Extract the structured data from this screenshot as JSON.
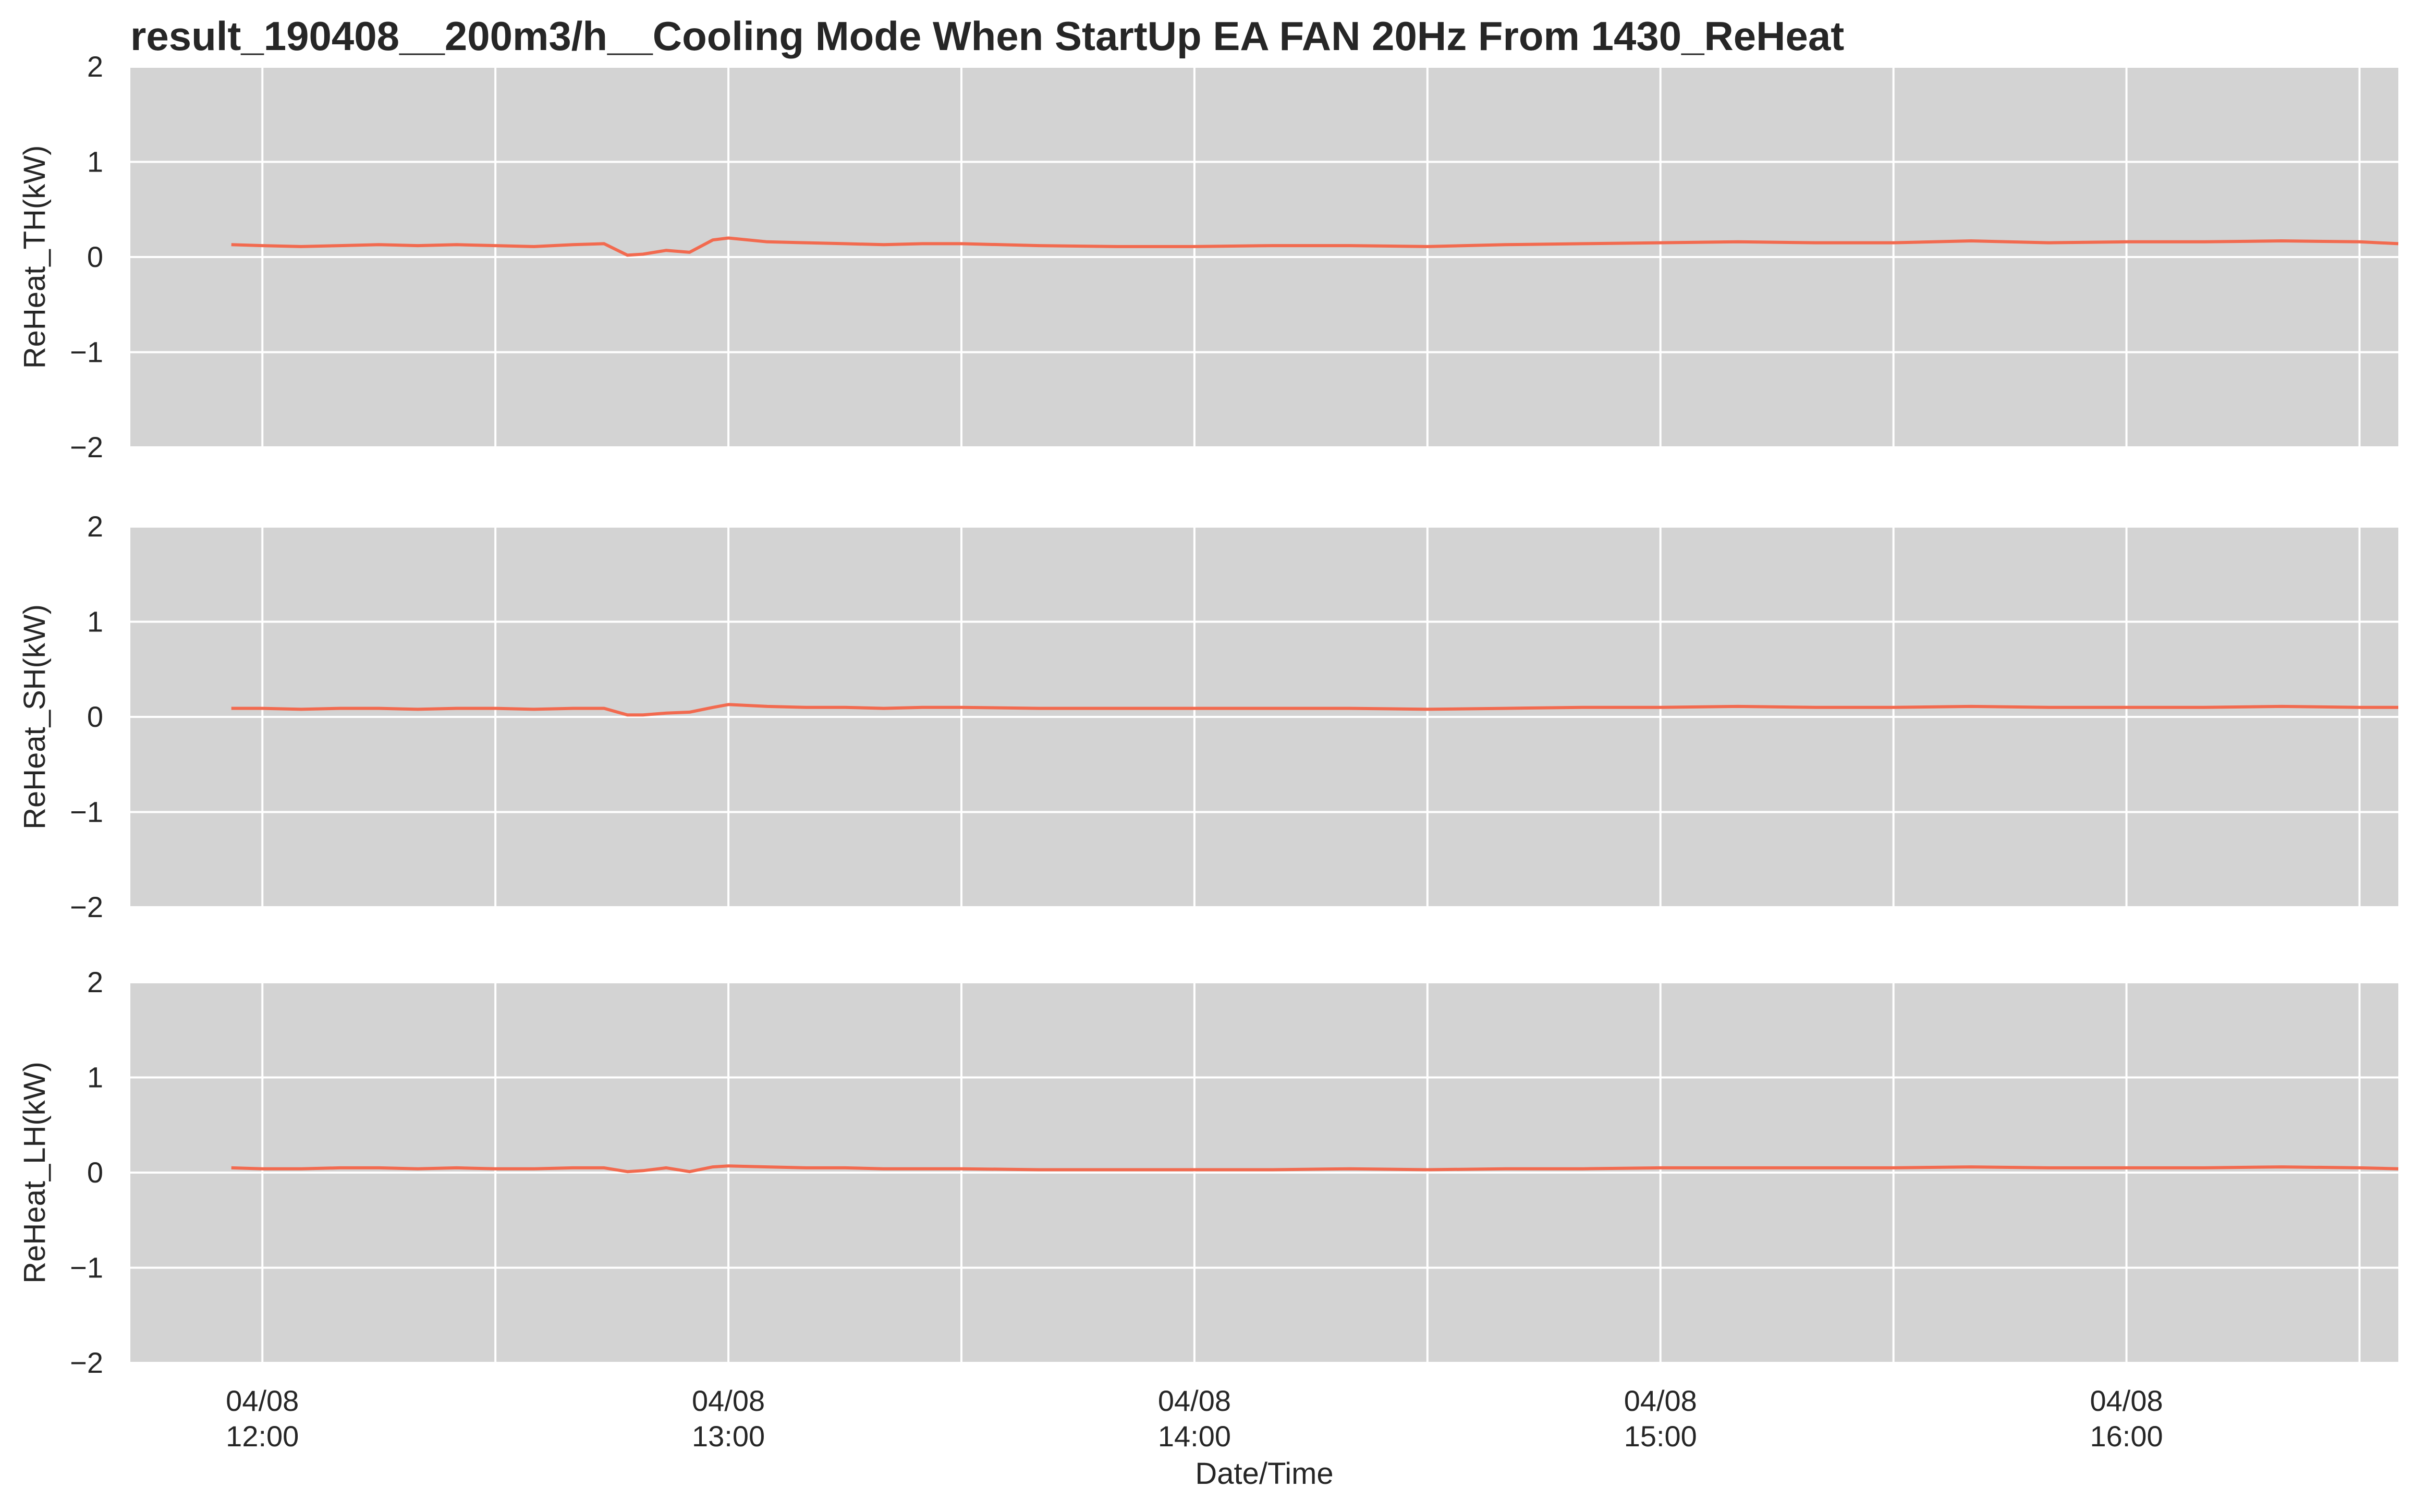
{
  "chart_data": {
    "type": "line",
    "title": "result_190408__200m3/h__Cooling Mode When StartUp EA FAN 20Hz From 1430_ReHeat",
    "xlabel": "Date/Time",
    "x_range": [
      "2019-04-08 11:43",
      "2019-04-08 16:35"
    ],
    "x_gridlines": [
      "12:00",
      "12:30",
      "13:00",
      "13:30",
      "14:00",
      "14:30",
      "15:00",
      "15:30",
      "16:00",
      "16:30"
    ],
    "x_tick_labels": [
      {
        "time": "12:00",
        "line1": "04/08",
        "line2": "12:00"
      },
      {
        "time": "13:00",
        "line1": "04/08",
        "line2": "13:00"
      },
      {
        "time": "14:00",
        "line1": "04/08",
        "line2": "14:00"
      },
      {
        "time": "15:00",
        "line1": "04/08",
        "line2": "15:00"
      },
      {
        "time": "16:00",
        "line1": "04/08",
        "line2": "16:00"
      }
    ],
    "ylim": [
      -2,
      2
    ],
    "y_ticks": [
      2,
      1,
      0,
      -1,
      -2
    ],
    "y_tick_labels": [
      "2",
      "1",
      "0",
      "−1",
      "−2"
    ],
    "grid": true,
    "line_color": "#f26a4f",
    "panel_background": "#d3d3d3",
    "grid_color": "#ffffff",
    "panels": [
      {
        "ylabel": "ReHeat_TH(kW)",
        "x": [
          "11:56",
          "12:00",
          "12:05",
          "12:10",
          "12:15",
          "12:20",
          "12:25",
          "12:30",
          "12:35",
          "12:40",
          "12:44",
          "12:47",
          "12:49",
          "12:52",
          "12:55",
          "12:58",
          "13:00",
          "13:05",
          "13:10",
          "13:15",
          "13:20",
          "13:25",
          "13:30",
          "13:40",
          "13:50",
          "14:00",
          "14:10",
          "14:20",
          "14:30",
          "14:40",
          "14:50",
          "15:00",
          "15:10",
          "15:20",
          "15:30",
          "15:40",
          "15:50",
          "16:00",
          "16:10",
          "16:20",
          "16:30",
          "16:35"
        ],
        "values": [
          0.13,
          0.12,
          0.11,
          0.12,
          0.13,
          0.12,
          0.13,
          0.12,
          0.11,
          0.13,
          0.14,
          0.02,
          0.03,
          0.07,
          0.05,
          0.18,
          0.2,
          0.16,
          0.15,
          0.14,
          0.13,
          0.14,
          0.14,
          0.12,
          0.11,
          0.11,
          0.12,
          0.12,
          0.11,
          0.13,
          0.14,
          0.15,
          0.16,
          0.15,
          0.15,
          0.17,
          0.15,
          0.16,
          0.16,
          0.17,
          0.16,
          0.14
        ]
      },
      {
        "ylabel": "ReHeat_SH(kW)",
        "x": [
          "11:56",
          "12:00",
          "12:05",
          "12:10",
          "12:15",
          "12:20",
          "12:25",
          "12:30",
          "12:35",
          "12:40",
          "12:44",
          "12:47",
          "12:49",
          "12:52",
          "12:55",
          "12:58",
          "13:00",
          "13:05",
          "13:10",
          "13:15",
          "13:20",
          "13:25",
          "13:30",
          "13:40",
          "13:50",
          "14:00",
          "14:10",
          "14:20",
          "14:30",
          "14:40",
          "14:50",
          "15:00",
          "15:10",
          "15:20",
          "15:30",
          "15:40",
          "15:50",
          "16:00",
          "16:10",
          "16:20",
          "16:30",
          "16:35"
        ],
        "values": [
          0.09,
          0.09,
          0.08,
          0.09,
          0.09,
          0.08,
          0.09,
          0.09,
          0.08,
          0.09,
          0.09,
          0.02,
          0.02,
          0.04,
          0.05,
          0.1,
          0.13,
          0.11,
          0.1,
          0.1,
          0.09,
          0.1,
          0.1,
          0.09,
          0.09,
          0.09,
          0.09,
          0.09,
          0.08,
          0.09,
          0.1,
          0.1,
          0.11,
          0.1,
          0.1,
          0.11,
          0.1,
          0.1,
          0.1,
          0.11,
          0.1,
          0.1
        ]
      },
      {
        "ylabel": "ReHeat_LH(kW)",
        "x": [
          "11:56",
          "12:00",
          "12:05",
          "12:10",
          "12:15",
          "12:20",
          "12:25",
          "12:30",
          "12:35",
          "12:40",
          "12:44",
          "12:47",
          "12:49",
          "12:52",
          "12:55",
          "12:58",
          "13:00",
          "13:05",
          "13:10",
          "13:15",
          "13:20",
          "13:25",
          "13:30",
          "13:40",
          "13:50",
          "14:00",
          "14:10",
          "14:20",
          "14:30",
          "14:40",
          "14:50",
          "15:00",
          "15:10",
          "15:20",
          "15:30",
          "15:40",
          "15:50",
          "16:00",
          "16:10",
          "16:20",
          "16:30",
          "16:35"
        ],
        "values": [
          0.05,
          0.04,
          0.04,
          0.05,
          0.05,
          0.04,
          0.05,
          0.04,
          0.04,
          0.05,
          0.05,
          0.01,
          0.02,
          0.05,
          0.01,
          0.06,
          0.07,
          0.06,
          0.05,
          0.05,
          0.04,
          0.04,
          0.04,
          0.03,
          0.03,
          0.03,
          0.03,
          0.04,
          0.03,
          0.04,
          0.04,
          0.05,
          0.05,
          0.05,
          0.05,
          0.06,
          0.05,
          0.05,
          0.05,
          0.06,
          0.05,
          0.04
        ]
      }
    ]
  }
}
